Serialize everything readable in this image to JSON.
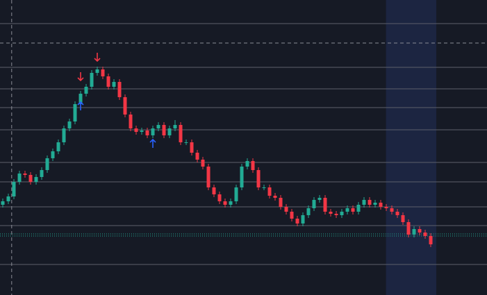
{
  "chart_data": {
    "type": "candlestick",
    "background": "#161a25",
    "up_color": "#22ab94",
    "down_color": "#f23645",
    "level_color": "#5d606b",
    "crosshair_color": "#8a8d96",
    "highlight_color": "#1c2541",
    "xlim": [
      -0.5,
      87.125
    ],
    "ylim": [
      0,
      425
    ],
    "open": [
      130,
      135,
      142,
      163,
      175,
      173,
      163,
      170,
      180,
      197,
      207,
      220,
      240,
      250,
      275,
      290,
      300,
      320,
      325,
      315,
      300,
      307,
      285,
      260,
      240,
      235,
      237,
      230,
      240,
      245,
      230,
      240,
      245,
      220,
      220,
      205,
      195,
      185,
      155,
      145,
      135,
      130,
      135,
      155,
      185,
      193,
      180,
      155,
      155,
      143,
      140,
      127,
      120,
      110,
      103,
      115,
      125,
      137,
      140,
      120,
      117,
      115,
      120,
      125,
      120,
      130,
      137,
      130,
      133,
      127,
      125,
      120,
      115,
      105,
      87,
      95,
      90,
      85
    ],
    "high": [
      139,
      146,
      167,
      179,
      179,
      177,
      174,
      184,
      201,
      211,
      224,
      244,
      254,
      279,
      294,
      304,
      324,
      329,
      329,
      319,
      311,
      311,
      289,
      264,
      244,
      241,
      241,
      244,
      249,
      249,
      244,
      252,
      249,
      224,
      224,
      209,
      199,
      189,
      159,
      149,
      139,
      139,
      159,
      189,
      197,
      197,
      184,
      159,
      159,
      147,
      144,
      131,
      124,
      114,
      119,
      129,
      141,
      144,
      144,
      124,
      121,
      124,
      129,
      129,
      134,
      141,
      141,
      137,
      137,
      131,
      129,
      124,
      119,
      109,
      99,
      99,
      94,
      89
    ],
    "low": [
      126,
      131,
      138,
      159,
      169,
      159,
      159,
      166,
      176,
      193,
      203,
      216,
      236,
      246,
      271,
      286,
      296,
      316,
      311,
      296,
      296,
      281,
      256,
      236,
      231,
      231,
      226,
      226,
      236,
      226,
      226,
      236,
      216,
      216,
      201,
      191,
      181,
      151,
      141,
      131,
      126,
      126,
      131,
      151,
      181,
      176,
      151,
      151,
      139,
      136,
      123,
      116,
      106,
      99,
      99,
      111,
      121,
      133,
      116,
      113,
      111,
      111,
      116,
      116,
      116,
      126,
      126,
      126,
      123,
      121,
      116,
      111,
      101,
      83,
      83,
      86,
      81,
      69
    ],
    "close": [
      135,
      142,
      163,
      175,
      173,
      163,
      170,
      180,
      197,
      207,
      220,
      240,
      250,
      275,
      290,
      300,
      320,
      325,
      315,
      300,
      307,
      285,
      260,
      240,
      235,
      237,
      230,
      240,
      245,
      230,
      240,
      245,
      220,
      220,
      205,
      195,
      185,
      155,
      145,
      135,
      130,
      135,
      155,
      185,
      193,
      180,
      155,
      155,
      143,
      140,
      127,
      120,
      110,
      103,
      115,
      125,
      137,
      140,
      120,
      117,
      115,
      120,
      125,
      120,
      130,
      137,
      130,
      133,
      127,
      125,
      120,
      115,
      105,
      87,
      95,
      90,
      85,
      73
    ],
    "levels": [
      391,
      328,
      297,
      270,
      238,
      191,
      163,
      127,
      100,
      44
    ],
    "dotted_levels": [
      88,
      85
    ],
    "crosshair": {
      "x": 1.6,
      "y": 363
    },
    "highlight_x": [
      68.95,
      78
    ],
    "markers": [
      {
        "x": 17,
        "y": 343,
        "dir": "down",
        "color": "#f23645"
      },
      {
        "x": 14,
        "y": 315,
        "dir": "down",
        "color": "#f23645"
      },
      {
        "x": 14,
        "y": 272,
        "dir": "up",
        "color": "#2962ff"
      },
      {
        "x": 27,
        "y": 218,
        "dir": "up",
        "color": "#2962ff"
      }
    ]
  }
}
